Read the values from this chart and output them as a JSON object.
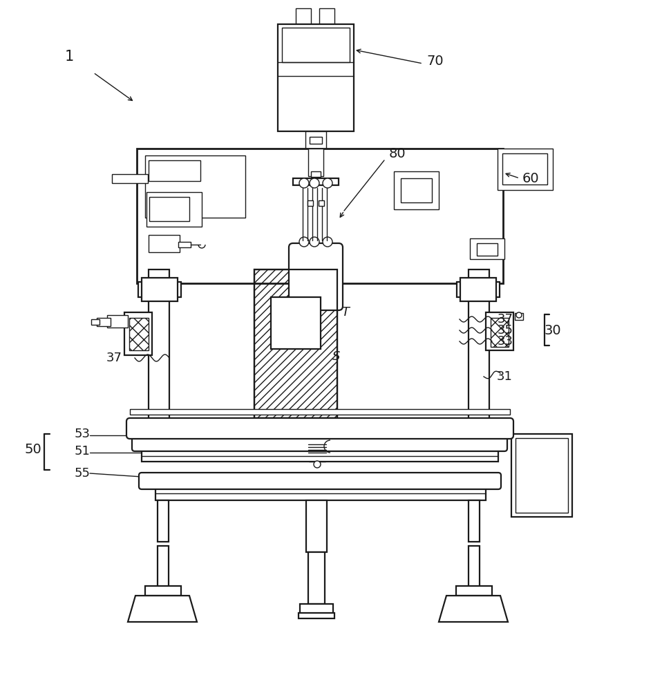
{
  "bg_color": "#ffffff",
  "line_color": "#1a1a1a",
  "lw_main": 1.6,
  "lw_thin": 1.0,
  "lw_thick": 2.0
}
